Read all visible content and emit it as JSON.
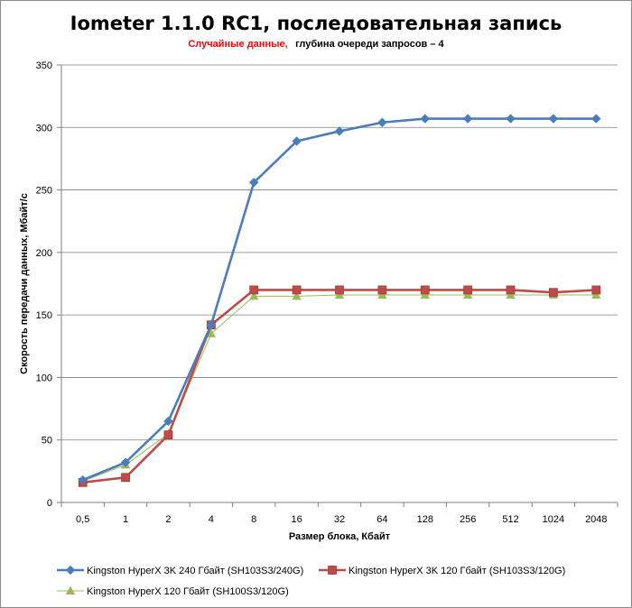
{
  "chart_data": {
    "type": "line",
    "title": "Iometer 1.1.0 RC1, последовательная запись",
    "subtitle_highlight": "Случайные данные,",
    "subtitle_rest": "глубина очереди запросов – 4",
    "xlabel": "Размер блока, Кбайт",
    "ylabel": "Скорость передачи данных, Мбайт/с",
    "ylim": [
      0,
      350
    ],
    "yticks": [
      0,
      50,
      100,
      150,
      200,
      250,
      300,
      350
    ],
    "categories": [
      "0,5",
      "1",
      "2",
      "4",
      "8",
      "16",
      "32",
      "64",
      "128",
      "256",
      "512",
      "1024",
      "2048"
    ],
    "legend_position": "bottom",
    "grid": true,
    "series": [
      {
        "name": "Kingston HyperX 3K 240 Гбайт (SH103S3/240G)",
        "color": "#4a7ebb",
        "marker": "diamond",
        "values": [
          18,
          32,
          65,
          142,
          256,
          289,
          297,
          304,
          307,
          307,
          307,
          307,
          307
        ]
      },
      {
        "name": "Kingston HyperX 3K 120 Гбайт (SH103S3/120G)",
        "color": "#be4b48",
        "marker": "square",
        "values": [
          16,
          20,
          54,
          142,
          170,
          170,
          170,
          170,
          170,
          170,
          170,
          168,
          170
        ]
      },
      {
        "name": "Kingston HyperX 120 Гбайт (SH100S3/120G)",
        "color": "#9bbb59",
        "marker": "triangle",
        "values": [
          17,
          30,
          55,
          135,
          165,
          165,
          166,
          166,
          166,
          166,
          166,
          166,
          166
        ]
      }
    ],
    "colors": {
      "subtitle_highlight": "#ff0000",
      "subtitle_rest": "#000000"
    }
  }
}
